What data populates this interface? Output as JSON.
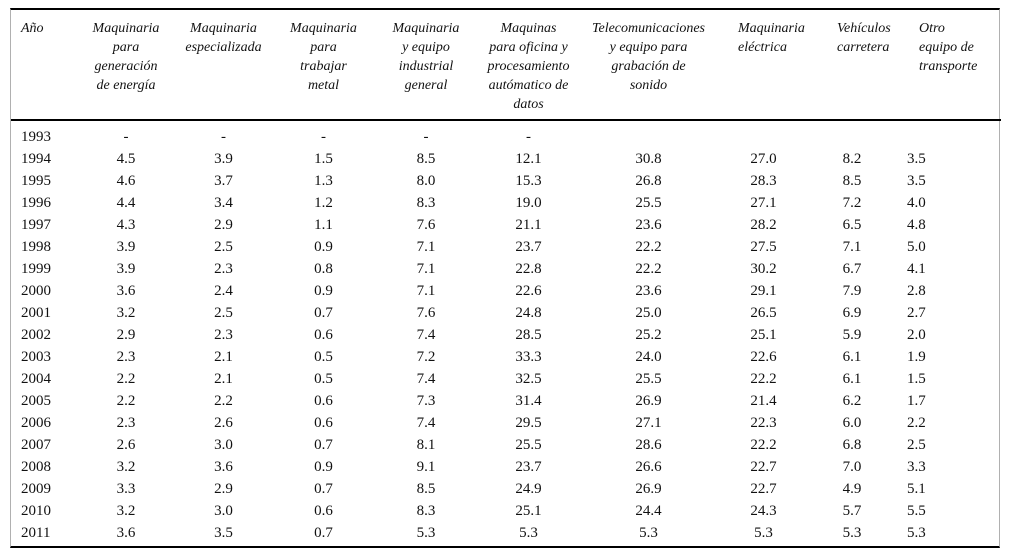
{
  "chart_data": {
    "type": "table",
    "title": "",
    "columns": [
      "Año",
      "Maquinaria\npara\ngeneración\nde energía",
      "Maquinaria\nespecializada",
      "Maquinaria\npara\ntrabajar\nmetal",
      "Maquinaria\ny equipo\nindustrial\ngeneral",
      "Maquinas\npara oficina y\nprocesamiento\nautómatico de\ndatos",
      "Telecomunicaciones\ny equipo para\ngrabación de\nsonido",
      "Maquinaria\neléctrica",
      "Vehículos\ncarretera",
      "Otro\nequipo de\ntransporte"
    ],
    "rows": [
      {
        "year": "1993",
        "values": [
          "-",
          "-",
          "-",
          "-",
          "-",
          "",
          "",
          "",
          ""
        ]
      },
      {
        "year": "1994",
        "values": [
          "4.5",
          "3.9",
          "1.5",
          "8.5",
          "12.1",
          "30.8",
          "27.0",
          "8.2",
          "3.5"
        ]
      },
      {
        "year": "1995",
        "values": [
          "4.6",
          "3.7",
          "1.3",
          "8.0",
          "15.3",
          "26.8",
          "28.3",
          "8.5",
          "3.5"
        ]
      },
      {
        "year": "1996",
        "values": [
          "4.4",
          "3.4",
          "1.2",
          "8.3",
          "19.0",
          "25.5",
          "27.1",
          "7.2",
          "4.0"
        ]
      },
      {
        "year": "1997",
        "values": [
          "4.3",
          "2.9",
          "1.1",
          "7.6",
          "21.1",
          "23.6",
          "28.2",
          "6.5",
          "4.8"
        ]
      },
      {
        "year": "1998",
        "values": [
          "3.9",
          "2.5",
          "0.9",
          "7.1",
          "23.7",
          "22.2",
          "27.5",
          "7.1",
          "5.0"
        ]
      },
      {
        "year": "1999",
        "values": [
          "3.9",
          "2.3",
          "0.8",
          "7.1",
          "22.8",
          "22.2",
          "30.2",
          "6.7",
          "4.1"
        ]
      },
      {
        "year": "2000",
        "values": [
          "3.6",
          "2.4",
          "0.9",
          "7.1",
          "22.6",
          "23.6",
          "29.1",
          "7.9",
          "2.8"
        ]
      },
      {
        "year": "2001",
        "values": [
          "3.2",
          "2.5",
          "0.7",
          "7.6",
          "24.8",
          "25.0",
          "26.5",
          "6.9",
          "2.7"
        ]
      },
      {
        "year": "2002",
        "values": [
          "2.9",
          "2.3",
          "0.6",
          "7.4",
          "28.5",
          "25.2",
          "25.1",
          "5.9",
          "2.0"
        ]
      },
      {
        "year": "2003",
        "values": [
          "2.3",
          "2.1",
          "0.5",
          "7.2",
          "33.3",
          "24.0",
          "22.6",
          "6.1",
          "1.9"
        ]
      },
      {
        "year": "2004",
        "values": [
          "2.2",
          "2.1",
          "0.5",
          "7.4",
          "32.5",
          "25.5",
          "22.2",
          "6.1",
          "1.5"
        ]
      },
      {
        "year": "2005",
        "values": [
          "2.2",
          "2.2",
          "0.6",
          "7.3",
          "31.4",
          "26.9",
          "21.4",
          "6.2",
          "1.7"
        ]
      },
      {
        "year": "2006",
        "values": [
          "2.3",
          "2.6",
          "0.6",
          "7.4",
          "29.5",
          "27.1",
          "22.3",
          "6.0",
          "2.2"
        ]
      },
      {
        "year": "2007",
        "values": [
          "2.6",
          "3.0",
          "0.7",
          "8.1",
          "25.5",
          "28.6",
          "22.2",
          "6.8",
          "2.5"
        ]
      },
      {
        "year": "2008",
        "values": [
          "3.2",
          "3.6",
          "0.9",
          "9.1",
          "23.7",
          "26.6",
          "22.7",
          "7.0",
          "3.3"
        ]
      },
      {
        "year": "2009",
        "values": [
          "3.3",
          "2.9",
          "0.7",
          "8.5",
          "24.9",
          "26.9",
          "22.7",
          "4.9",
          "5.1"
        ]
      },
      {
        "year": "2010",
        "values": [
          "3.2",
          "3.0",
          "0.6",
          "8.3",
          "25.1",
          "24.4",
          "24.3",
          "5.7",
          "5.5"
        ]
      },
      {
        "year": "2011",
        "values": [
          "3.6",
          "3.5",
          "0.7",
          "5.3",
          "5.3",
          "5.3",
          "5.3",
          "5.3",
          "5.3"
        ]
      }
    ],
    "layout_hints": {
      "grid": "horizontal rules only (top, below header, bottom)",
      "header_style": "italic serif, top-aligned",
      "missing_value_marker": "-",
      "border_color": "#000000",
      "side_border_color": "#b0b0b0",
      "background": "#ffffff"
    }
  }
}
